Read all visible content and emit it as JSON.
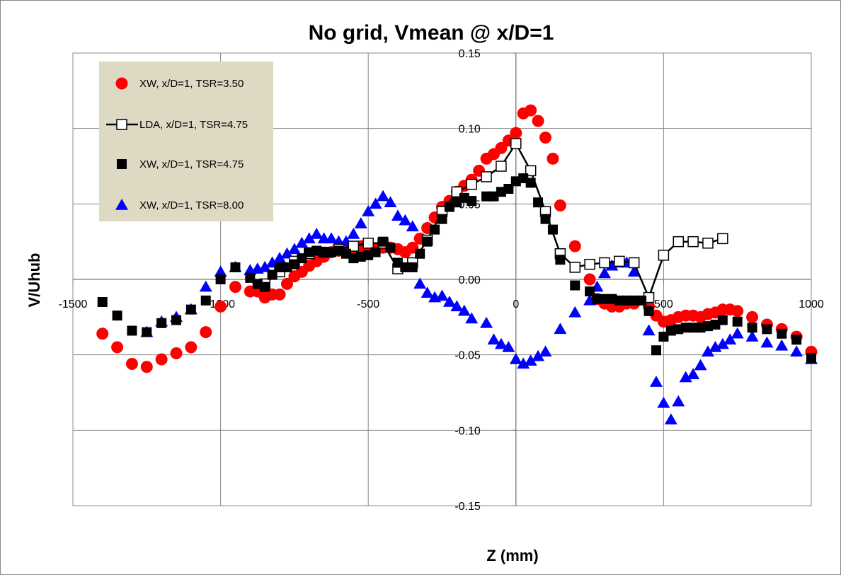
{
  "chart_data": {
    "type": "scatter",
    "title": "No grid, Vmean @ x/D=1",
    "xlabel": "Z (mm)",
    "ylabel": "V/Uhub",
    "xlim": [
      -1500,
      1000
    ],
    "ylim": [
      -0.15,
      0.15
    ],
    "x_ticks": [
      -1500,
      -1000,
      -500,
      0,
      500,
      1000
    ],
    "x_tick_labels": [
      "-1500",
      "-1000",
      "-500",
      "0",
      "500",
      "1000"
    ],
    "y_ticks": [
      -0.15,
      -0.1,
      -0.05,
      0.0,
      0.05,
      0.1,
      0.15
    ],
    "y_tick_labels": [
      "-0.15",
      "-0.10",
      "-0.05",
      "0.00",
      "0.05",
      "0.10",
      "0.15"
    ],
    "grid": true,
    "legend_position": "top-left",
    "series": [
      {
        "name": "XW, x/D=1, TSR=3.50",
        "marker": "circle",
        "line": false,
        "color": "#ff0000",
        "points": [
          [
            -1400,
            -0.036
          ],
          [
            -1350,
            -0.045
          ],
          [
            -1300,
            -0.056
          ],
          [
            -1250,
            -0.058
          ],
          [
            -1200,
            -0.053
          ],
          [
            -1150,
            -0.049
          ],
          [
            -1100,
            -0.045
          ],
          [
            -1050,
            -0.035
          ],
          [
            -1000,
            -0.018
          ],
          [
            -950,
            -0.005
          ],
          [
            -900,
            -0.008
          ],
          [
            -875,
            -0.008
          ],
          [
            -850,
            -0.012
          ],
          [
            -825,
            -0.01
          ],
          [
            -800,
            -0.01
          ],
          [
            -775,
            -0.003
          ],
          [
            -750,
            0.002
          ],
          [
            -725,
            0.005
          ],
          [
            -700,
            0.009
          ],
          [
            -675,
            0.012
          ],
          [
            -650,
            0.015
          ],
          [
            -625,
            0.018
          ],
          [
            -600,
            0.019
          ],
          [
            -575,
            0.019
          ],
          [
            -550,
            0.02
          ],
          [
            -525,
            0.022
          ],
          [
            -500,
            0.021
          ],
          [
            -475,
            0.02
          ],
          [
            -450,
            0.021
          ],
          [
            -425,
            0.021
          ],
          [
            -400,
            0.02
          ],
          [
            -375,
            0.018
          ],
          [
            -350,
            0.021
          ],
          [
            -325,
            0.027
          ],
          [
            -300,
            0.034
          ],
          [
            -275,
            0.041
          ],
          [
            -250,
            0.048
          ],
          [
            -225,
            0.052
          ],
          [
            -200,
            0.058
          ],
          [
            -175,
            0.062
          ],
          [
            -150,
            0.066
          ],
          [
            -125,
            0.072
          ],
          [
            -100,
            0.08
          ],
          [
            -75,
            0.083
          ],
          [
            -50,
            0.087
          ],
          [
            -25,
            0.092
          ],
          [
            0,
            0.097
          ],
          [
            25,
            0.11
          ],
          [
            50,
            0.112
          ],
          [
            75,
            0.105
          ],
          [
            100,
            0.094
          ],
          [
            125,
            0.08
          ],
          [
            150,
            0.049
          ],
          [
            200,
            0.022
          ],
          [
            250,
            0.0
          ],
          [
            275,
            -0.013
          ],
          [
            300,
            -0.016
          ],
          [
            325,
            -0.018
          ],
          [
            350,
            -0.018
          ],
          [
            375,
            -0.016
          ],
          [
            400,
            -0.016
          ],
          [
            450,
            -0.018
          ],
          [
            475,
            -0.024
          ],
          [
            500,
            -0.028
          ],
          [
            525,
            -0.027
          ],
          [
            550,
            -0.025
          ],
          [
            575,
            -0.024
          ],
          [
            600,
            -0.024
          ],
          [
            625,
            -0.025
          ],
          [
            650,
            -0.023
          ],
          [
            675,
            -0.022
          ],
          [
            700,
            -0.02
          ],
          [
            725,
            -0.02
          ],
          [
            750,
            -0.021
          ],
          [
            800,
            -0.025
          ],
          [
            850,
            -0.03
          ],
          [
            900,
            -0.033
          ],
          [
            950,
            -0.038
          ],
          [
            1000,
            -0.048
          ]
        ]
      },
      {
        "name": "LDA, x/D=1, TSR=4.75",
        "marker": "square-open",
        "line": true,
        "color": "#000000",
        "points": [
          [
            -850,
            -0.003
          ],
          [
            -800,
            0.005
          ],
          [
            -750,
            0.012
          ],
          [
            -700,
            0.017
          ],
          [
            -650,
            0.018
          ],
          [
            -600,
            0.02
          ],
          [
            -550,
            0.022
          ],
          [
            -500,
            0.024
          ],
          [
            -450,
            0.024
          ],
          [
            -400,
            0.007
          ],
          [
            -350,
            0.011
          ],
          [
            -300,
            0.026
          ],
          [
            -250,
            0.045
          ],
          [
            -200,
            0.058
          ],
          [
            -150,
            0.063
          ],
          [
            -100,
            0.068
          ],
          [
            -50,
            0.075
          ],
          [
            0,
            0.09
          ],
          [
            50,
            0.072
          ],
          [
            100,
            0.045
          ],
          [
            150,
            0.017
          ],
          [
            200,
            0.008
          ],
          [
            250,
            0.01
          ],
          [
            300,
            0.011
          ],
          [
            350,
            0.012
          ],
          [
            400,
            0.011
          ],
          [
            450,
            -0.012
          ],
          [
            500,
            0.016
          ],
          [
            550,
            0.025
          ],
          [
            600,
            0.025
          ],
          [
            650,
            0.024
          ],
          [
            700,
            0.027
          ]
        ]
      },
      {
        "name": "XW, x/D=1, TSR=4.75",
        "marker": "square",
        "line": false,
        "color": "#000000",
        "points": [
          [
            -1400,
            -0.015
          ],
          [
            -1350,
            -0.024
          ],
          [
            -1300,
            -0.034
          ],
          [
            -1250,
            -0.035
          ],
          [
            -1200,
            -0.029
          ],
          [
            -1150,
            -0.027
          ],
          [
            -1100,
            -0.02
          ],
          [
            -1050,
            -0.014
          ],
          [
            -1000,
            0.0
          ],
          [
            -950,
            0.008
          ],
          [
            -900,
            0.001
          ],
          [
            -875,
            -0.003
          ],
          [
            -850,
            -0.005
          ],
          [
            -825,
            0.003
          ],
          [
            -800,
            0.008
          ],
          [
            -775,
            0.008
          ],
          [
            -750,
            0.01
          ],
          [
            -725,
            0.014
          ],
          [
            -700,
            0.018
          ],
          [
            -675,
            0.019
          ],
          [
            -650,
            0.018
          ],
          [
            -625,
            0.018
          ],
          [
            -600,
            0.019
          ],
          [
            -575,
            0.017
          ],
          [
            -550,
            0.014
          ],
          [
            -525,
            0.015
          ],
          [
            -500,
            0.016
          ],
          [
            -475,
            0.018
          ],
          [
            -450,
            0.025
          ],
          [
            -425,
            0.021
          ],
          [
            -400,
            0.011
          ],
          [
            -375,
            0.008
          ],
          [
            -350,
            0.008
          ],
          [
            -325,
            0.017
          ],
          [
            -300,
            0.025
          ],
          [
            -275,
            0.033
          ],
          [
            -250,
            0.04
          ],
          [
            -225,
            0.048
          ],
          [
            -200,
            0.051
          ],
          [
            -175,
            0.054
          ],
          [
            -150,
            0.052
          ],
          [
            -100,
            0.055
          ],
          [
            -75,
            0.055
          ],
          [
            -50,
            0.058
          ],
          [
            -25,
            0.06
          ],
          [
            0,
            0.065
          ],
          [
            25,
            0.067
          ],
          [
            50,
            0.064
          ],
          [
            75,
            0.051
          ],
          [
            100,
            0.04
          ],
          [
            125,
            0.033
          ],
          [
            150,
            0.013
          ],
          [
            200,
            -0.004
          ],
          [
            250,
            -0.008
          ],
          [
            275,
            -0.013
          ],
          [
            300,
            -0.013
          ],
          [
            325,
            -0.013
          ],
          [
            350,
            -0.014
          ],
          [
            375,
            -0.014
          ],
          [
            400,
            -0.014
          ],
          [
            425,
            -0.014
          ],
          [
            450,
            -0.021
          ],
          [
            475,
            -0.047
          ],
          [
            500,
            -0.038
          ],
          [
            525,
            -0.034
          ],
          [
            550,
            -0.033
          ],
          [
            575,
            -0.032
          ],
          [
            600,
            -0.032
          ],
          [
            625,
            -0.032
          ],
          [
            650,
            -0.031
          ],
          [
            675,
            -0.03
          ],
          [
            700,
            -0.027
          ],
          [
            750,
            -0.028
          ],
          [
            800,
            -0.032
          ],
          [
            850,
            -0.033
          ],
          [
            900,
            -0.036
          ],
          [
            950,
            -0.04
          ],
          [
            1000,
            -0.052
          ]
        ]
      },
      {
        "name": "XW, x/D=1, TSR=8.00",
        "marker": "triangle",
        "line": false,
        "color": "#0000ff",
        "points": [
          [
            -1250,
            -0.035
          ],
          [
            -1200,
            -0.028
          ],
          [
            -1150,
            -0.025
          ],
          [
            -1100,
            -0.02
          ],
          [
            -1050,
            -0.005
          ],
          [
            -1000,
            0.005
          ],
          [
            -950,
            0.008
          ],
          [
            -900,
            0.006
          ],
          [
            -875,
            0.007
          ],
          [
            -850,
            0.008
          ],
          [
            -825,
            0.011
          ],
          [
            -800,
            0.014
          ],
          [
            -775,
            0.017
          ],
          [
            -750,
            0.02
          ],
          [
            -725,
            0.024
          ],
          [
            -700,
            0.027
          ],
          [
            -675,
            0.03
          ],
          [
            -650,
            0.027
          ],
          [
            -625,
            0.027
          ],
          [
            -600,
            0.025
          ],
          [
            -575,
            0.025
          ],
          [
            -550,
            0.03
          ],
          [
            -525,
            0.037
          ],
          [
            -500,
            0.045
          ],
          [
            -475,
            0.05
          ],
          [
            -450,
            0.055
          ],
          [
            -425,
            0.051
          ],
          [
            -400,
            0.042
          ],
          [
            -375,
            0.039
          ],
          [
            -350,
            0.035
          ],
          [
            -325,
            -0.003
          ],
          [
            -300,
            -0.009
          ],
          [
            -275,
            -0.012
          ],
          [
            -250,
            -0.011
          ],
          [
            -225,
            -0.015
          ],
          [
            -200,
            -0.018
          ],
          [
            -175,
            -0.021
          ],
          [
            -150,
            -0.026
          ],
          [
            -100,
            -0.029
          ],
          [
            -75,
            -0.04
          ],
          [
            -50,
            -0.043
          ],
          [
            -25,
            -0.045
          ],
          [
            0,
            -0.053
          ],
          [
            25,
            -0.056
          ],
          [
            50,
            -0.054
          ],
          [
            75,
            -0.051
          ],
          [
            100,
            -0.048
          ],
          [
            150,
            -0.033
          ],
          [
            200,
            -0.022
          ],
          [
            250,
            -0.014
          ],
          [
            275,
            -0.005
          ],
          [
            300,
            0.004
          ],
          [
            325,
            0.009
          ],
          [
            350,
            0.011
          ],
          [
            375,
            0.011
          ],
          [
            400,
            0.005
          ],
          [
            450,
            -0.034
          ],
          [
            475,
            -0.068
          ],
          [
            500,
            -0.082
          ],
          [
            525,
            -0.093
          ],
          [
            550,
            -0.081
          ],
          [
            575,
            -0.065
          ],
          [
            600,
            -0.063
          ],
          [
            625,
            -0.057
          ],
          [
            650,
            -0.048
          ],
          [
            675,
            -0.045
          ],
          [
            700,
            -0.043
          ],
          [
            725,
            -0.04
          ],
          [
            750,
            -0.036
          ],
          [
            800,
            -0.038
          ],
          [
            850,
            -0.042
          ],
          [
            900,
            -0.044
          ],
          [
            950,
            -0.048
          ],
          [
            1000,
            -0.053
          ]
        ]
      }
    ]
  }
}
